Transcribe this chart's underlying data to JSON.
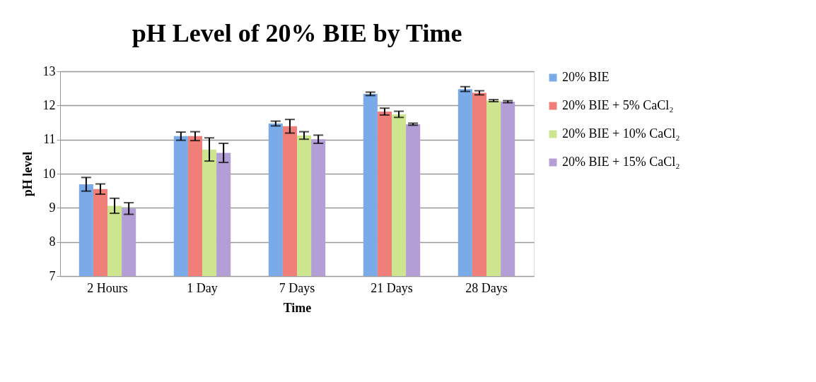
{
  "chart_data": {
    "type": "bar",
    "title": "pH Level of 20% BIE by Time",
    "xlabel": "Time",
    "ylabel": "pH level",
    "categories": [
      "2 Hours",
      "1 Day",
      "7 Days",
      "21 Days",
      "28 Days"
    ],
    "series": [
      {
        "name": "20% BIE",
        "color": "#7aaae8",
        "values": [
          9.69,
          11.1,
          11.47,
          12.34,
          12.48
        ],
        "errors": [
          0.2,
          0.12,
          0.07,
          0.05,
          0.07
        ]
      },
      {
        "name": "20% BIE + 5% CaCl₂",
        "color": "#ef7f78",
        "values": [
          9.55,
          11.1,
          11.39,
          11.82,
          12.37
        ],
        "errors": [
          0.15,
          0.13,
          0.2,
          0.1,
          0.06
        ]
      },
      {
        "name": "20% BIE + 10% CaCl₂",
        "color": "#cde58e",
        "values": [
          9.06,
          10.71,
          11.12,
          11.74,
          12.14
        ],
        "errors": [
          0.22,
          0.34,
          0.11,
          0.09,
          0.03
        ]
      },
      {
        "name": "20% BIE + 15% CaCl₂",
        "color": "#b39fd6",
        "values": [
          8.98,
          10.61,
          11.01,
          11.45,
          12.11
        ],
        "errors": [
          0.17,
          0.28,
          0.12,
          0.03,
          0.03
        ]
      }
    ],
    "ylim": [
      7,
      13
    ],
    "yticks": [
      7,
      8,
      9,
      10,
      11,
      12,
      13
    ],
    "grid": "y",
    "legend": "right"
  }
}
